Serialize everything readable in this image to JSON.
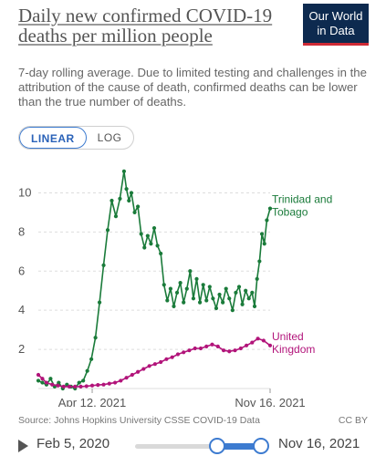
{
  "header": {
    "title": "Daily new confirmed COVID-19 deaths per million people",
    "logo_line1": "Our World",
    "logo_line2": "in Data",
    "subtitle": "7-day rolling average. Due to limited testing and challenges in the attribution of the cause of death, confirmed deaths can be lower than the true number of deaths."
  },
  "scale_toggle": {
    "options": [
      "LINEAR",
      "LOG"
    ],
    "selected": "LINEAR"
  },
  "chart_data": {
    "type": "line",
    "title": "Daily new confirmed COVID-19 deaths per million people",
    "xlabel": "",
    "ylabel": "",
    "ylim": [
      0,
      11
    ],
    "yticks": [
      0,
      2,
      4,
      6,
      8,
      10
    ],
    "xtick_labels": [
      "Apr 12, 2021",
      "Nov 16, 2021"
    ],
    "x_range": [
      "Feb 5, 2021",
      "Nov 16, 2021"
    ],
    "grid": "horizontal dashed",
    "series": [
      {
        "name": "Trinidad and Tobago",
        "color": "#1a7b3a",
        "points": [
          [
            "2021-02-05",
            0.4
          ],
          [
            "2021-02-10",
            0.3
          ],
          [
            "2021-02-15",
            0.2
          ],
          [
            "2021-02-20",
            0.5
          ],
          [
            "2021-02-25",
            0.1
          ],
          [
            "2021-03-02",
            0.3
          ],
          [
            "2021-03-07",
            0.0
          ],
          [
            "2021-03-12",
            0.2
          ],
          [
            "2021-03-17",
            0.1
          ],
          [
            "2021-03-22",
            0.0
          ],
          [
            "2021-03-27",
            0.3
          ],
          [
            "2021-04-01",
            0.4
          ],
          [
            "2021-04-06",
            0.9
          ],
          [
            "2021-04-11",
            1.5
          ],
          [
            "2021-04-16",
            2.6
          ],
          [
            "2021-04-21",
            4.4
          ],
          [
            "2021-04-26",
            6.3
          ],
          [
            "2021-05-01",
            8.1
          ],
          [
            "2021-05-06",
            9.6
          ],
          [
            "2021-05-11",
            8.8
          ],
          [
            "2021-05-16",
            9.7
          ],
          [
            "2021-05-21",
            11.1
          ],
          [
            "2021-05-24",
            10.2
          ],
          [
            "2021-05-27",
            9.6
          ],
          [
            "2021-05-30",
            10.0
          ],
          [
            "2021-06-03",
            9.0
          ],
          [
            "2021-06-07",
            9.3
          ],
          [
            "2021-06-11",
            7.9
          ],
          [
            "2021-06-15",
            7.2
          ],
          [
            "2021-06-19",
            7.8
          ],
          [
            "2021-06-23",
            7.4
          ],
          [
            "2021-06-27",
            8.2
          ],
          [
            "2021-07-01",
            7.3
          ],
          [
            "2021-07-05",
            6.9
          ],
          [
            "2021-07-09",
            5.3
          ],
          [
            "2021-07-13",
            4.5
          ],
          [
            "2021-07-17",
            5.1
          ],
          [
            "2021-07-21",
            4.2
          ],
          [
            "2021-07-25",
            4.9
          ],
          [
            "2021-07-29",
            5.4
          ],
          [
            "2021-08-02",
            4.4
          ],
          [
            "2021-08-06",
            5.1
          ],
          [
            "2021-08-10",
            6.0
          ],
          [
            "2021-08-14",
            4.6
          ],
          [
            "2021-08-18",
            5.6
          ],
          [
            "2021-08-22",
            4.4
          ],
          [
            "2021-08-26",
            5.3
          ],
          [
            "2021-08-30",
            4.5
          ],
          [
            "2021-09-03",
            5.2
          ],
          [
            "2021-09-07",
            4.6
          ],
          [
            "2021-09-11",
            4.1
          ],
          [
            "2021-09-15",
            4.8
          ],
          [
            "2021-09-19",
            4.4
          ],
          [
            "2021-09-23",
            5.1
          ],
          [
            "2021-09-27",
            4.6
          ],
          [
            "2021-10-01",
            4.0
          ],
          [
            "2021-10-05",
            4.9
          ],
          [
            "2021-10-09",
            5.2
          ],
          [
            "2021-10-13",
            4.3
          ],
          [
            "2021-10-17",
            5.0
          ],
          [
            "2021-10-21",
            4.6
          ],
          [
            "2021-10-25",
            4.9
          ],
          [
            "2021-10-28",
            4.2
          ],
          [
            "2021-10-31",
            5.6
          ],
          [
            "2021-11-03",
            6.5
          ],
          [
            "2021-11-06",
            7.9
          ],
          [
            "2021-11-09",
            7.4
          ],
          [
            "2021-11-12",
            8.6
          ],
          [
            "2021-11-16",
            9.2
          ]
        ]
      },
      {
        "name": "United Kingdom",
        "color": "#b2147a",
        "points": [
          [
            "2021-02-05",
            0.7
          ],
          [
            "2021-02-10",
            0.5
          ],
          [
            "2021-02-15",
            0.3
          ],
          [
            "2021-02-22",
            0.2
          ],
          [
            "2021-03-01",
            0.15
          ],
          [
            "2021-03-08",
            0.1
          ],
          [
            "2021-03-15",
            0.1
          ],
          [
            "2021-03-22",
            0.1
          ],
          [
            "2021-03-29",
            0.1
          ],
          [
            "2021-04-05",
            0.12
          ],
          [
            "2021-04-12",
            0.15
          ],
          [
            "2021-04-19",
            0.18
          ],
          [
            "2021-04-26",
            0.2
          ],
          [
            "2021-05-03",
            0.25
          ],
          [
            "2021-05-10",
            0.3
          ],
          [
            "2021-05-17",
            0.4
          ],
          [
            "2021-05-24",
            0.55
          ],
          [
            "2021-05-31",
            0.7
          ],
          [
            "2021-06-07",
            0.85
          ],
          [
            "2021-06-14",
            1.0
          ],
          [
            "2021-06-21",
            1.15
          ],
          [
            "2021-06-28",
            1.25
          ],
          [
            "2021-07-05",
            1.35
          ],
          [
            "2021-07-12",
            1.5
          ],
          [
            "2021-07-19",
            1.6
          ],
          [
            "2021-07-26",
            1.75
          ],
          [
            "2021-08-02",
            1.85
          ],
          [
            "2021-08-09",
            1.95
          ],
          [
            "2021-08-16",
            2.05
          ],
          [
            "2021-08-23",
            2.05
          ],
          [
            "2021-08-30",
            2.15
          ],
          [
            "2021-09-06",
            2.25
          ],
          [
            "2021-09-13",
            2.15
          ],
          [
            "2021-09-20",
            1.95
          ],
          [
            "2021-09-27",
            1.9
          ],
          [
            "2021-10-04",
            1.95
          ],
          [
            "2021-10-11",
            2.05
          ],
          [
            "2021-10-18",
            2.2
          ],
          [
            "2021-10-25",
            2.35
          ],
          [
            "2021-11-01",
            2.55
          ],
          [
            "2021-11-08",
            2.45
          ],
          [
            "2021-11-16",
            2.2
          ]
        ]
      }
    ]
  },
  "footer": {
    "source": "Source: Johns Hopkins University CSSE COVID-19 Data",
    "license": "CC BY"
  },
  "timeline": {
    "start_label": "Feb 5, 2020",
    "end_label": "Nov 16, 2021"
  }
}
